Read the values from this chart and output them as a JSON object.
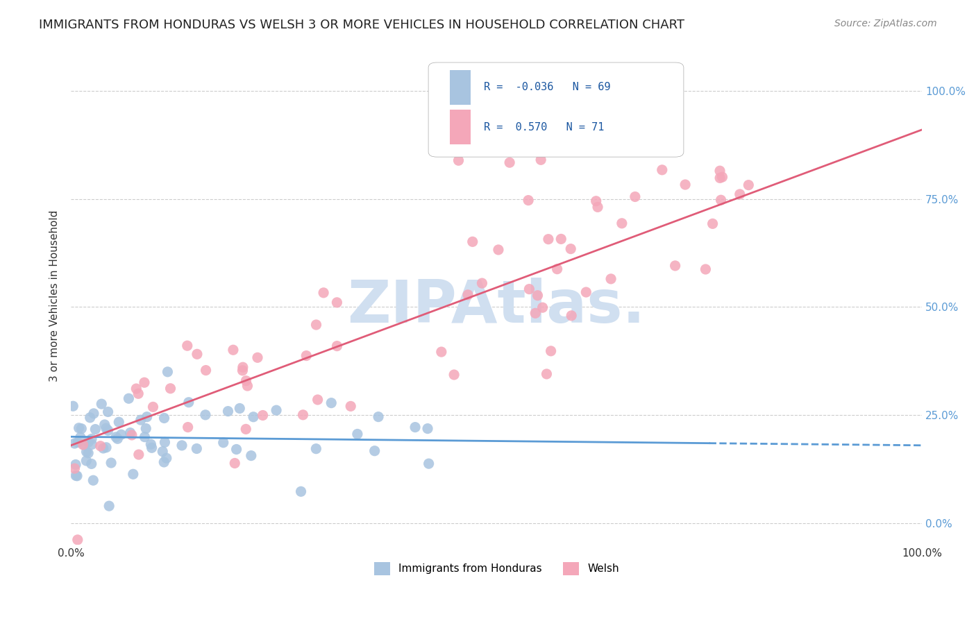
{
  "title": "IMMIGRANTS FROM HONDURAS VS WELSH 3 OR MORE VEHICLES IN HOUSEHOLD CORRELATION CHART",
  "source": "Source: ZipAtlas.com",
  "ylabel": "3 or more Vehicles in Household",
  "xlabel": "",
  "xlim": [
    0.0,
    100.0
  ],
  "ylim": [
    -5.0,
    110.0
  ],
  "yticks": [
    0,
    25,
    50,
    75,
    100
  ],
  "ytick_labels": [
    "0.0%",
    "25.0%",
    "50.0%",
    "75.0%",
    "100.0%"
  ],
  "xticks": [
    0,
    100
  ],
  "xtick_labels": [
    "0.0%",
    "100.0%"
  ],
  "legend_r1": "R = -0.036",
  "legend_n1": "N = 69",
  "legend_r2": "R =  0.570",
  "legend_n2": "N = 71",
  "series1_color": "#a8c4e0",
  "series2_color": "#f4a7b9",
  "trend1_color": "#5b9bd5",
  "trend2_color": "#e05c78",
  "grid_color": "#cccccc",
  "watermark_text": "ZIPAtlas.",
  "watermark_color": "#d0dff0",
  "title_fontsize": 13,
  "source_fontsize": 10,
  "background_color": "#ffffff",
  "series1_R": -0.036,
  "series1_N": 69,
  "series2_R": 0.57,
  "series2_N": 71,
  "series1_intercept": 20.0,
  "series1_slope": -0.02,
  "series2_intercept": 18.0,
  "series2_slope": 0.73
}
